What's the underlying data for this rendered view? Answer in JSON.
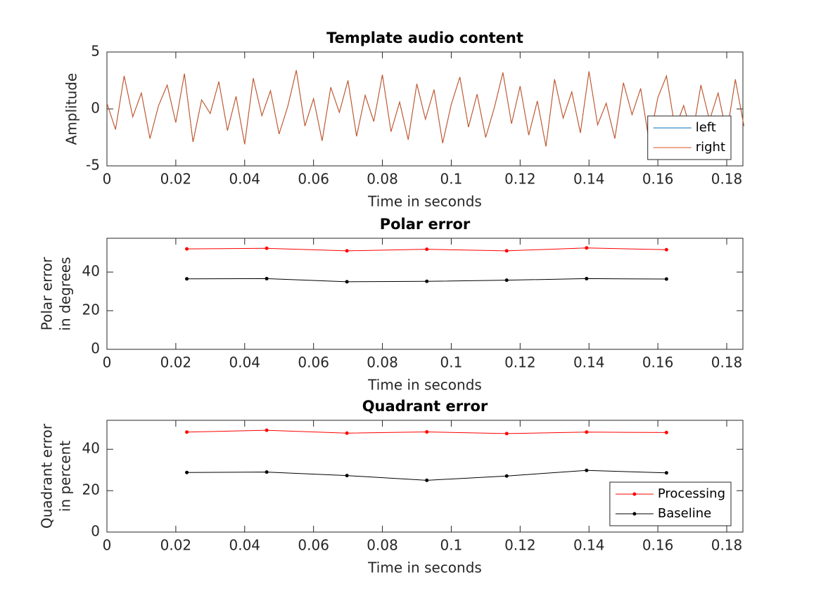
{
  "chart_data": [
    {
      "type": "line",
      "title": "Template audio content",
      "xlabel": "Time in seconds",
      "ylabel": "Amplitude",
      "x": [
        0,
        0.0025,
        0.005,
        0.0075,
        0.01,
        0.0125,
        0.015,
        0.0175,
        0.02,
        0.0225,
        0.025,
        0.0275,
        0.03,
        0.0325,
        0.035,
        0.0375,
        0.04,
        0.0425,
        0.045,
        0.0475,
        0.05,
        0.0525,
        0.055,
        0.0575,
        0.06,
        0.0625,
        0.065,
        0.0675,
        0.07,
        0.0725,
        0.075,
        0.0775,
        0.08,
        0.0825,
        0.085,
        0.0875,
        0.09,
        0.0925,
        0.095,
        0.0975,
        0.1,
        0.1025,
        0.105,
        0.1075,
        0.11,
        0.1125,
        0.115,
        0.1175,
        0.12,
        0.1225,
        0.125,
        0.1275,
        0.13,
        0.1325,
        0.135,
        0.1375,
        0.14,
        0.1425,
        0.145,
        0.1475,
        0.15,
        0.1525,
        0.155,
        0.1575,
        0.16,
        0.1625,
        0.165,
        0.1675,
        0.17,
        0.1725,
        0.175,
        0.1775,
        0.18,
        0.1825,
        0.185
      ],
      "series": [
        {
          "name": "left",
          "color": "#0072bd",
          "values": [
            0.5,
            -1.8,
            2.9,
            -0.7,
            1.4,
            -2.6,
            0.3,
            2.1,
            -1.2,
            3.1,
            -2.9,
            0.8,
            -0.4,
            2.4,
            -1.9,
            1.1,
            -3.1,
            2.7,
            -0.6,
            1.6,
            -2.2,
            0.2,
            3.4,
            -1.5,
            0.9,
            -2.8,
            1.9,
            -0.3,
            2.5,
            -2.4,
            1.2,
            -1.1,
            3,
            -2,
            0.6,
            -2.7,
            2.2,
            -0.9,
            1.7,
            -3,
            0.4,
            2.8,
            -1.6,
            1.3,
            -2.5,
            0.1,
            3.2,
            -1.3,
            2,
            -2.3,
            0.7,
            -3.3,
            2.6,
            -0.8,
            1.5,
            -2.1,
            3.3,
            -1.4,
            0.5,
            -2.6,
            2.3,
            -0.5,
            1.8,
            -2.9,
            1,
            2.9,
            -1.7,
            0.3,
            -2.4,
            2.1,
            -1,
            1.4,
            -2.2,
            2.6,
            -1.5
          ]
        },
        {
          "name": "right",
          "color": "#d95319",
          "values": [
            0.5,
            -1.8,
            2.9,
            -0.7,
            1.4,
            -2.6,
            0.3,
            2.1,
            -1.2,
            3.1,
            -2.9,
            0.8,
            -0.4,
            2.4,
            -1.9,
            1.1,
            -3.1,
            2.7,
            -0.6,
            1.6,
            -2.2,
            0.2,
            3.4,
            -1.5,
            0.9,
            -2.8,
            1.9,
            -0.3,
            2.5,
            -2.4,
            1.2,
            -1.1,
            3,
            -2,
            0.6,
            -2.7,
            2.2,
            -0.9,
            1.7,
            -3,
            0.4,
            2.8,
            -1.6,
            1.3,
            -2.5,
            0.1,
            3.2,
            -1.3,
            2,
            -2.3,
            0.7,
            -3.3,
            2.6,
            -0.8,
            1.5,
            -2.1,
            3.3,
            -1.4,
            0.5,
            -2.6,
            2.3,
            -0.5,
            1.8,
            -2.9,
            1,
            2.9,
            -1.7,
            0.3,
            -2.4,
            2.1,
            -1,
            1.4,
            -2.2,
            2.6,
            -1.5
          ]
        }
      ],
      "xlim": [
        0,
        0.1847
      ],
      "xticks": [
        0,
        0.02,
        0.04,
        0.06,
        0.08,
        0.1,
        0.12,
        0.14,
        0.16,
        0.18
      ],
      "ylim": [
        -5,
        5
      ],
      "yticks": [
        -5,
        0,
        5
      ],
      "markers": false,
      "legend": "lower right"
    },
    {
      "type": "line",
      "title": "Polar error",
      "xlabel": "Time in seconds",
      "ylabel": [
        "Polar error",
        "in degrees"
      ],
      "x": [
        0.0232,
        0.0464,
        0.0697,
        0.0929,
        0.1161,
        0.1393,
        0.1625
      ],
      "series": [
        {
          "color": "#ff0000",
          "values": [
            52,
            52.3,
            51,
            51.8,
            51,
            52.5,
            51.6
          ]
        },
        {
          "color": "#000000",
          "values": [
            36.5,
            36.6,
            35,
            35.2,
            35.8,
            36.6,
            36.4
          ]
        }
      ],
      "xlim": [
        0,
        0.1847
      ],
      "xticks": [
        0,
        0.02,
        0.04,
        0.06,
        0.08,
        0.1,
        0.12,
        0.14,
        0.16,
        0.18
      ],
      "ylim": [
        0,
        57.5
      ],
      "yticks": [
        0,
        20,
        40
      ],
      "markers": true
    },
    {
      "type": "line",
      "title": "Quadrant error",
      "xlabel": "Time in seconds",
      "ylabel": [
        "Quadrant error",
        "in percent"
      ],
      "x": [
        0.0232,
        0.0464,
        0.0697,
        0.0929,
        0.1161,
        0.1393,
        0.1625
      ],
      "series": [
        {
          "name": "Processing",
          "color": "#ff0000",
          "values": [
            48.3,
            49.2,
            47.8,
            48.4,
            47.6,
            48.3,
            48.1
          ]
        },
        {
          "name": "Baseline",
          "color": "#000000",
          "values": [
            28.8,
            29,
            27.3,
            25,
            27.1,
            29.8,
            28.6
          ]
        }
      ],
      "xlim": [
        0,
        0.1847
      ],
      "xticks": [
        0,
        0.02,
        0.04,
        0.06,
        0.08,
        0.1,
        0.12,
        0.14,
        0.16,
        0.18
      ],
      "ylim": [
        0,
        54
      ],
      "yticks": [
        0,
        20,
        40
      ],
      "markers": true,
      "legend": "lower right"
    }
  ]
}
